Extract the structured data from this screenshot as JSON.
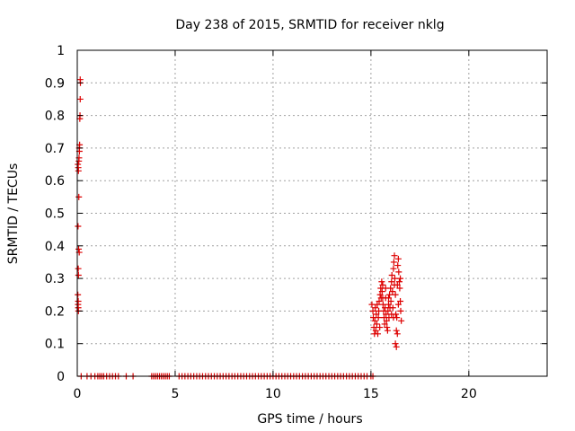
{
  "chart_data": {
    "type": "scatter",
    "title": "Day 238 of 2015, SRMTID for receiver nklg",
    "xlabel": "GPS time / hours",
    "ylabel": "SRMTID / TECUs",
    "xlim": [
      0,
      24
    ],
    "ylim": [
      0,
      1
    ],
    "x_ticks": [
      0,
      5,
      10,
      15,
      20
    ],
    "x_tick_labels": [
      "0",
      "5",
      "10",
      "15",
      "20"
    ],
    "y_ticks": [
      0,
      0.1,
      0.2,
      0.3,
      0.4,
      0.5,
      0.6,
      0.7,
      0.8,
      0.9,
      1
    ],
    "y_tick_labels": [
      "0",
      "0.1",
      "0.2",
      "0.3",
      "0.4",
      "0.5",
      "0.6",
      "0.7",
      "0.8",
      "0.9",
      "1"
    ],
    "grid": true,
    "marker": "+",
    "marker_color": "#dd0000",
    "series": [
      {
        "name": "SRMTID",
        "points": [
          [
            0.03,
            0.65
          ],
          [
            0.05,
            0.64
          ],
          [
            0.06,
            0.63
          ],
          [
            0.08,
            0.55
          ],
          [
            0.04,
            0.46
          ],
          [
            0.07,
            0.39
          ],
          [
            0.05,
            0.33
          ],
          [
            0.06,
            0.31
          ],
          [
            0.03,
            0.25
          ],
          [
            0.04,
            0.22
          ],
          [
            0.06,
            0.2
          ],
          [
            0.05,
            0.23
          ],
          [
            0.05,
            0.21
          ],
          [
            0.08,
            0.66
          ],
          [
            0.09,
            0.67
          ],
          [
            0.11,
            0.69
          ],
          [
            0.1,
            0.7
          ],
          [
            0.12,
            0.71
          ],
          [
            0.13,
            0.79
          ],
          [
            0.14,
            0.8
          ],
          [
            0.15,
            0.85
          ],
          [
            0.16,
            0.9
          ],
          [
            0.15,
            0.91
          ],
          [
            0.1,
            0.38
          ],
          [
            0.2,
            0
          ],
          [
            0.5,
            0
          ],
          [
            0.7,
            0
          ],
          [
            0.9,
            0
          ],
          [
            1.05,
            0
          ],
          [
            1.15,
            0
          ],
          [
            1.25,
            0
          ],
          [
            1.35,
            0
          ],
          [
            1.5,
            0
          ],
          [
            1.65,
            0
          ],
          [
            1.8,
            0
          ],
          [
            1.95,
            0
          ],
          [
            2.1,
            0
          ],
          [
            2.5,
            0
          ],
          [
            2.85,
            0
          ],
          [
            3.8,
            0
          ],
          [
            3.9,
            0
          ],
          [
            4.0,
            0
          ],
          [
            4.1,
            0
          ],
          [
            4.2,
            0
          ],
          [
            4.3,
            0
          ],
          [
            4.4,
            0
          ],
          [
            4.5,
            0
          ],
          [
            4.6,
            0
          ],
          [
            4.7,
            0
          ],
          [
            5.2,
            0
          ],
          [
            5.35,
            0
          ],
          [
            5.5,
            0
          ],
          [
            5.65,
            0
          ],
          [
            5.8,
            0
          ],
          [
            5.95,
            0
          ],
          [
            6.1,
            0
          ],
          [
            6.25,
            0
          ],
          [
            6.4,
            0
          ],
          [
            6.55,
            0
          ],
          [
            6.7,
            0
          ],
          [
            6.85,
            0
          ],
          [
            7.0,
            0
          ],
          [
            7.15,
            0
          ],
          [
            7.3,
            0
          ],
          [
            7.45,
            0
          ],
          [
            7.6,
            0
          ],
          [
            7.75,
            0
          ],
          [
            7.9,
            0
          ],
          [
            8.05,
            0
          ],
          [
            8.2,
            0
          ],
          [
            8.35,
            0
          ],
          [
            8.5,
            0
          ],
          [
            8.65,
            0
          ],
          [
            8.8,
            0
          ],
          [
            8.95,
            0
          ],
          [
            9.1,
            0
          ],
          [
            9.25,
            0
          ],
          [
            9.4,
            0
          ],
          [
            9.55,
            0
          ],
          [
            9.7,
            0
          ],
          [
            9.85,
            0
          ],
          [
            10.0,
            0
          ],
          [
            10.15,
            0
          ],
          [
            10.3,
            0
          ],
          [
            10.45,
            0
          ],
          [
            10.6,
            0
          ],
          [
            10.75,
            0
          ],
          [
            10.9,
            0
          ],
          [
            11.05,
            0
          ],
          [
            11.2,
            0
          ],
          [
            11.35,
            0
          ],
          [
            11.5,
            0
          ],
          [
            11.65,
            0
          ],
          [
            11.8,
            0
          ],
          [
            11.95,
            0
          ],
          [
            12.1,
            0
          ],
          [
            12.25,
            0
          ],
          [
            12.4,
            0
          ],
          [
            12.55,
            0
          ],
          [
            12.7,
            0
          ],
          [
            12.85,
            0
          ],
          [
            13.0,
            0
          ],
          [
            13.15,
            0
          ],
          [
            13.3,
            0
          ],
          [
            13.45,
            0
          ],
          [
            13.6,
            0
          ],
          [
            13.75,
            0
          ],
          [
            13.9,
            0
          ],
          [
            14.05,
            0
          ],
          [
            14.2,
            0
          ],
          [
            14.35,
            0
          ],
          [
            14.5,
            0
          ],
          [
            14.65,
            0
          ],
          [
            14.8,
            0
          ],
          [
            15.0,
            0
          ],
          [
            15.1,
            0
          ],
          [
            15.05,
            0.22
          ],
          [
            15.1,
            0.2
          ],
          [
            15.12,
            0.18
          ],
          [
            15.15,
            0.15
          ],
          [
            15.18,
            0.13
          ],
          [
            15.2,
            0.17
          ],
          [
            15.22,
            0.21
          ],
          [
            15.25,
            0.14
          ],
          [
            15.27,
            0.19
          ],
          [
            15.3,
            0.16
          ],
          [
            15.32,
            0.22
          ],
          [
            15.35,
            0.13
          ],
          [
            15.38,
            0.18
          ],
          [
            15.4,
            0.2
          ],
          [
            15.42,
            0.23
          ],
          [
            15.45,
            0.15
          ],
          [
            15.47,
            0.25
          ],
          [
            15.5,
            0.27
          ],
          [
            15.52,
            0.24
          ],
          [
            15.55,
            0.29
          ],
          [
            15.57,
            0.26
          ],
          [
            15.6,
            0.28
          ],
          [
            15.62,
            0.22
          ],
          [
            15.65,
            0.2
          ],
          [
            15.67,
            0.18
          ],
          [
            15.7,
            0.16
          ],
          [
            15.72,
            0.21
          ],
          [
            15.75,
            0.24
          ],
          [
            15.77,
            0.19
          ],
          [
            15.8,
            0.17
          ],
          [
            15.82,
            0.15
          ],
          [
            15.85,
            0.14
          ],
          [
            15.87,
            0.2
          ],
          [
            15.9,
            0.22
          ],
          [
            15.92,
            0.18
          ],
          [
            15.95,
            0.25
          ],
          [
            15.97,
            0.21
          ],
          [
            16.0,
            0.27
          ],
          [
            16.02,
            0.23
          ],
          [
            16.05,
            0.29
          ],
          [
            16.07,
            0.31
          ],
          [
            16.1,
            0.26
          ],
          [
            16.12,
            0.21
          ],
          [
            16.15,
            0.33
          ],
          [
            16.17,
            0.35
          ],
          [
            16.2,
            0.37
          ],
          [
            16.22,
            0.3
          ],
          [
            16.25,
            0.25
          ],
          [
            16.27,
            0.19
          ],
          [
            16.3,
            0.14
          ],
          [
            16.32,
            0.18
          ],
          [
            16.35,
            0.28
          ],
          [
            16.37,
            0.34
          ],
          [
            16.4,
            0.36
          ],
          [
            16.42,
            0.32
          ],
          [
            16.45,
            0.29
          ],
          [
            16.47,
            0.27
          ],
          [
            16.5,
            0.23
          ],
          [
            16.52,
            0.2
          ],
          [
            16.55,
            0.17
          ],
          [
            16.25,
            0.1
          ],
          [
            16.3,
            0.09
          ],
          [
            16.35,
            0.13
          ],
          [
            15.6,
            0.24
          ],
          [
            15.75,
            0.27
          ],
          [
            15.9,
            0.24
          ],
          [
            16.05,
            0.19
          ],
          [
            16.15,
            0.18
          ],
          [
            16.4,
            0.22
          ],
          [
            16.5,
            0.3
          ],
          [
            16.2,
            0.28
          ]
        ]
      }
    ]
  }
}
